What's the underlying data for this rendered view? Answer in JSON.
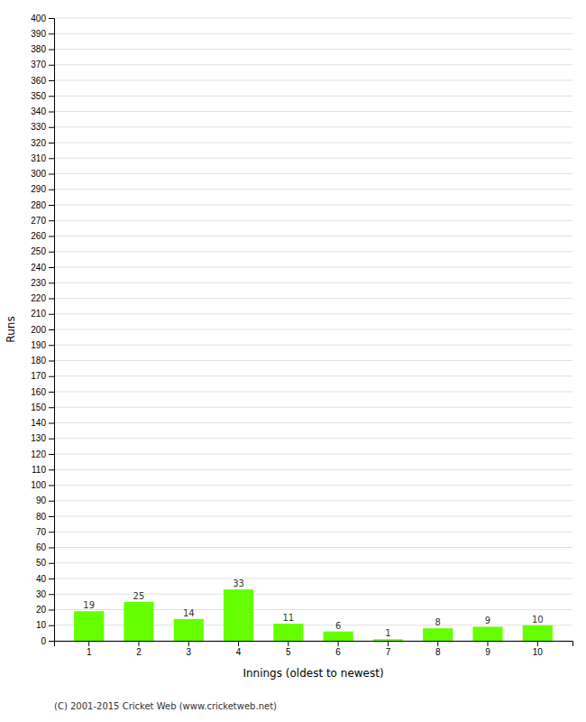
{
  "chart_data": {
    "type": "bar",
    "categories": [
      "1",
      "2",
      "3",
      "4",
      "5",
      "6",
      "7",
      "8",
      "9",
      "10"
    ],
    "values": [
      19,
      25,
      14,
      33,
      11,
      6,
      1,
      8,
      9,
      10
    ],
    "color": "#66ff00",
    "xlabel": "Innings (oldest to newest)",
    "ylabel": "Runs",
    "ylim": [
      0,
      400
    ],
    "yticks": [
      0,
      10,
      20,
      30,
      40,
      50,
      60,
      70,
      80,
      90,
      100,
      110,
      120,
      130,
      140,
      150,
      160,
      170,
      180,
      190,
      200,
      210,
      220,
      230,
      240,
      250,
      260,
      270,
      280,
      290,
      300,
      310,
      320,
      330,
      340,
      350,
      360,
      370,
      380,
      390,
      400
    ],
    "grid": true,
    "data_labels": true,
    "footer": "(C) 2001-2015 Cricket Web (www.cricketweb.net)"
  }
}
